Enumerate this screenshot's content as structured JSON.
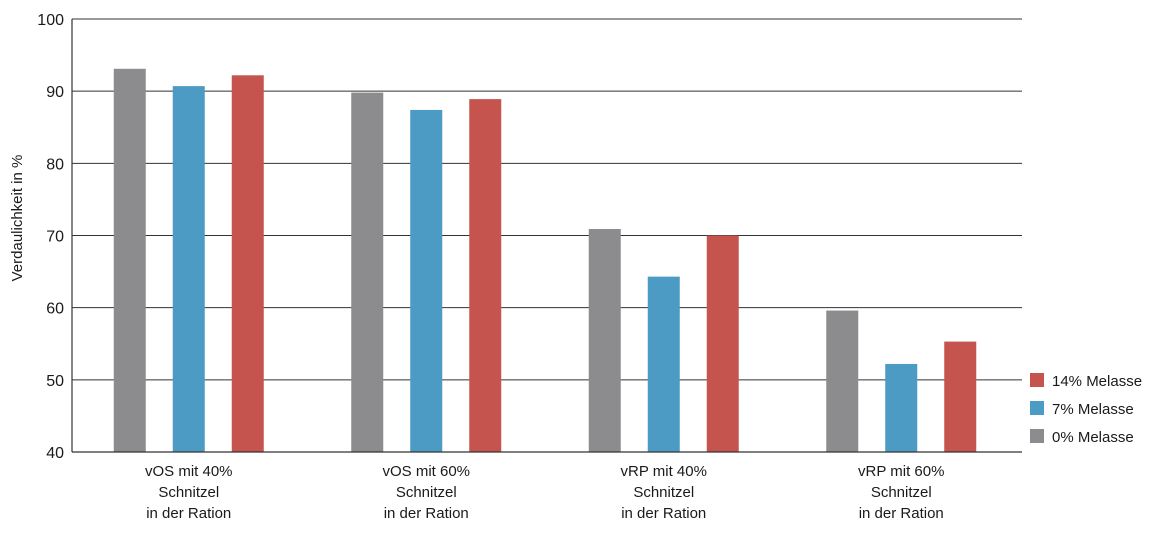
{
  "chart_data": {
    "type": "bar",
    "title": "",
    "xlabel": "",
    "ylabel": "Verdaulichkeit in %",
    "ylim": [
      40,
      100
    ],
    "yticks": [
      40,
      50,
      60,
      70,
      80,
      90,
      100
    ],
    "grid": true,
    "legend_position": "bottom-right",
    "categories": [
      [
        "vOS mit 40%",
        "Schnitzel",
        "in der Ration"
      ],
      [
        "vOS mit 60%",
        "Schnitzel",
        "in der Ration"
      ],
      [
        "vRP mit 40%",
        "Schnitzel",
        "in der Ration"
      ],
      [
        "vRP mit 60%",
        "Schnitzel",
        "in der Ration"
      ]
    ],
    "series": [
      {
        "name": "0% Melasse",
        "color": "#8c8c8e",
        "values": [
          93.1,
          89.8,
          70.9,
          59.6
        ]
      },
      {
        "name": "7% Melasse",
        "color": "#4b9bc4",
        "values": [
          90.7,
          87.4,
          64.3,
          52.2
        ]
      },
      {
        "name": "14% Melasse",
        "color": "#c5544f",
        "values": [
          92.2,
          88.9,
          70.0,
          55.3
        ]
      }
    ],
    "legend_order": [
      "14% Melasse",
      "7% Melasse",
      "0% Melasse"
    ]
  }
}
